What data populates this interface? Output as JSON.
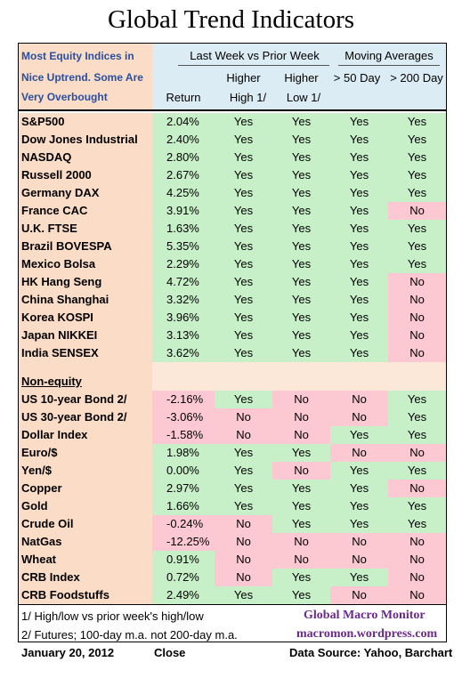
{
  "title": "Global Trend Indicators",
  "header": {
    "left_lines": [
      "Most Equity Indices in",
      "Nice Uptrend.  Some Are",
      "Very Overbought"
    ],
    "group1": "Last Week vs Prior Week",
    "group2": "Moving Averages",
    "col_return": "Return",
    "col_high_1": "Higher",
    "col_high_2": "High 1/",
    "col_low_1": "Higher",
    "col_low_2": "Low  1/",
    "col_50": "> 50 Day",
    "col_200": "> 200 Day"
  },
  "equity_rows": [
    {
      "name": "S&P500",
      "ret": "2.04%",
      "h": "Yes",
      "l": "Yes",
      "m50": "Yes",
      "m200": "Yes"
    },
    {
      "name": "Dow Jones Industrial",
      "ret": "2.40%",
      "h": "Yes",
      "l": "Yes",
      "m50": "Yes",
      "m200": "Yes"
    },
    {
      "name": "NASDAQ",
      "ret": "2.80%",
      "h": "Yes",
      "l": "Yes",
      "m50": "Yes",
      "m200": "Yes"
    },
    {
      "name": "Russell 2000",
      "ret": "2.67%",
      "h": "Yes",
      "l": "Yes",
      "m50": "Yes",
      "m200": "Yes"
    },
    {
      "name": "Germany DAX",
      "ret": "4.25%",
      "h": "Yes",
      "l": "Yes",
      "m50": "Yes",
      "m200": "Yes"
    },
    {
      "name": "France CAC",
      "ret": "3.91%",
      "h": "Yes",
      "l": "Yes",
      "m50": "Yes",
      "m200": "No"
    },
    {
      "name": "U.K. FTSE",
      "ret": "1.63%",
      "h": "Yes",
      "l": "Yes",
      "m50": "Yes",
      "m200": "Yes"
    },
    {
      "name": "Brazil BOVESPA",
      "ret": "5.35%",
      "h": "Yes",
      "l": "Yes",
      "m50": "Yes",
      "m200": "Yes"
    },
    {
      "name": "Mexico Bolsa",
      "ret": "2.29%",
      "h": "Yes",
      "l": "Yes",
      "m50": "Yes",
      "m200": "Yes"
    },
    {
      "name": "HK  Hang Seng",
      "ret": "4.72%",
      "h": "Yes",
      "l": "Yes",
      "m50": "Yes",
      "m200": "No"
    },
    {
      "name": "China Shanghai",
      "ret": "3.32%",
      "h": "Yes",
      "l": "Yes",
      "m50": "Yes",
      "m200": "No"
    },
    {
      "name": "Korea KOSPI",
      "ret": "3.96%",
      "h": "Yes",
      "l": "Yes",
      "m50": "Yes",
      "m200": "No"
    },
    {
      "name": "Japan NIKKEI",
      "ret": "3.13%",
      "h": "Yes",
      "l": "Yes",
      "m50": "Yes",
      "m200": "No"
    },
    {
      "name": "India SENSEX",
      "ret": "3.62%",
      "h": "Yes",
      "l": "Yes",
      "m50": "Yes",
      "m200": "No"
    }
  ],
  "non_equity_label": "Non-equity",
  "non_equity_rows": [
    {
      "name": "US 10-year Bond 2/",
      "ret": "-2.16%",
      "h": "Yes",
      "l": "No",
      "m50": "No",
      "m200": "Yes"
    },
    {
      "name": "US 30-year Bond 2/",
      "ret": "-3.06%",
      "h": "No",
      "l": "No",
      "m50": "No",
      "m200": "Yes"
    },
    {
      "name": "Dollar Index",
      "ret": "-1.58%",
      "h": "No",
      "l": "No",
      "m50": "Yes",
      "m200": "Yes"
    },
    {
      "name": "Euro/$",
      "ret": "1.98%",
      "h": "Yes",
      "l": "Yes",
      "m50": "No",
      "m200": "No"
    },
    {
      "name": "Yen/$",
      "ret": "0.00%",
      "h": "Yes",
      "l": "No",
      "m50": "Yes",
      "m200": "Yes"
    },
    {
      "name": "Copper",
      "ret": "2.97%",
      "h": "Yes",
      "l": "Yes",
      "m50": "Yes",
      "m200": "No"
    },
    {
      "name": "Gold",
      "ret": "1.66%",
      "h": "Yes",
      "l": "Yes",
      "m50": "Yes",
      "m200": "Yes"
    },
    {
      "name": "Crude Oil",
      "ret": "-0.24%",
      "h": "No",
      "l": "Yes",
      "m50": "Yes",
      "m200": "Yes"
    },
    {
      "name": "NatGas",
      "ret": "-12.25%",
      "h": "No",
      "l": "No",
      "m50": "No",
      "m200": "No"
    },
    {
      "name": "Wheat",
      "ret": "0.91%",
      "h": "No",
      "l": "No",
      "m50": "No",
      "m200": "No"
    },
    {
      "name": "CRB Index",
      "ret": "0.72%",
      "h": "No",
      "l": "Yes",
      "m50": "Yes",
      "m200": "No"
    },
    {
      "name": "CRB Foodstuffs",
      "ret": "2.49%",
      "h": "Yes",
      "l": "Yes",
      "m50": "No",
      "m200": "No"
    }
  ],
  "footer": {
    "note1": "1/  High/low vs prior week's high/low",
    "note2": "2/  Futures;  100-day m.a. not 200-day m.a.",
    "date": "January 20, 2012",
    "close": "Close",
    "brand": "Global Macro Monitor",
    "site": "macromon.wordpress.com",
    "source": "Data Source: Yahoo, Barchart"
  },
  "colors": {
    "green": "#c8f0c8",
    "red": "#fcc8d2",
    "peach": "#fbdcc6",
    "blue_header": "#dcecf4",
    "brand": "#6b2a8c"
  }
}
